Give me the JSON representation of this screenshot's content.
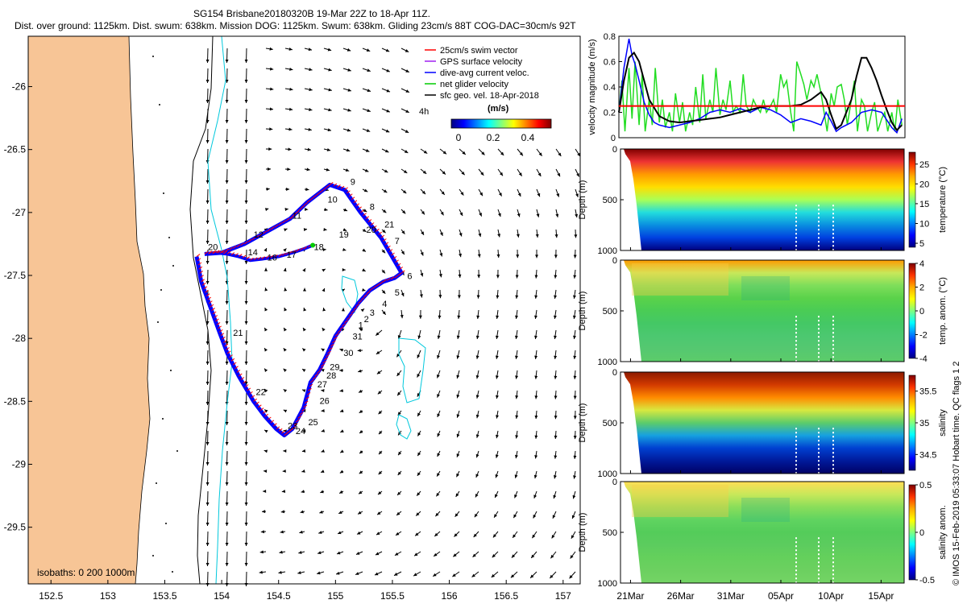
{
  "header": {
    "title_line1": "SG154 Brisbane20180320B 19-Mar 22Z to 18-Apr 11Z.",
    "title_line2": "Dist. over ground: 1125km. Dist. swum: 638km. Mission DOG: 1125km. Swum: 638km. Gliding 23cm/s 88T COG-DAC=30cm/s 92T"
  },
  "footer_credit": "© IMOS 15-Feb-2019 05:33:07 Hobart time. QC flags 1 2",
  "colors": {
    "land": "#f7c596",
    "swim_vector": "#ff0000",
    "gps_velocity": "#a020f0",
    "dive_avg": "#0000ff",
    "net_glider": "#00cc00",
    "sfc_geo": "#000000",
    "isobath_0": "#000000",
    "isobath_200": "#00c8dc",
    "isobath_1000": "#000000",
    "velocity_threshold": "#ff0000"
  },
  "chart_data": [
    {
      "type": "scatter",
      "name": "map",
      "xlim": [
        152.3,
        157.15
      ],
      "ylim": [
        -29.95,
        -25.6
      ],
      "xticks": [
        "152.5",
        "153",
        "153.5",
        "154",
        "154.5",
        "155",
        "155.5",
        "156",
        "156.5",
        "157"
      ],
      "xtick_values": [
        152.5,
        153,
        153.5,
        154,
        154.5,
        155,
        155.5,
        156,
        156.5,
        157
      ],
      "yticks": [
        "-26",
        "-26.5",
        "-27",
        "-27.5",
        "-28",
        "-28.5",
        "-29",
        "-29.5"
      ],
      "ytick_values": [
        -26,
        -26.5,
        -27,
        -27.5,
        -28,
        -28.5,
        -29,
        -29.5
      ],
      "legend": [
        {
          "label": "25cm/s swim vector",
          "color": "#ff0000",
          "mark": "line"
        },
        {
          "label": "GPS surface velocity",
          "color": "#a020f0",
          "mark": "line"
        },
        {
          "label": "dive-avg current veloc.",
          "color": "#0000ff",
          "mark": "line"
        },
        {
          "label": "net glider velocity",
          "color": "#00cc00",
          "mark": "line"
        },
        {
          "label": "sfc geo. vel. 18-Apr-2018",
          "color": "#000000",
          "mark": "line"
        }
      ],
      "legend_position": "top-right",
      "speed_scale_label": "4h",
      "colorbar_title": "(m/s)",
      "colorbar_ticks": [
        "0",
        "0.2",
        "0.4"
      ],
      "isobaths_label": "isobaths: 0   200  1000m",
      "track": {
        "lon": [
          153.78,
          153.82,
          153.9,
          153.98,
          154.05,
          154.15,
          154.28,
          154.38,
          154.48,
          154.55,
          154.62,
          154.72,
          154.78,
          154.86,
          154.93,
          155.0,
          155.1,
          155.2,
          155.3,
          155.42,
          155.52,
          155.58,
          155.4,
          155.22,
          155.08,
          154.95,
          154.75,
          154.6,
          154.4,
          154.2,
          154.0,
          153.85
        ],
        "lat": [
          -27.35,
          -27.55,
          -27.75,
          -27.95,
          -28.12,
          -28.3,
          -28.5,
          -28.62,
          -28.72,
          -28.77,
          -28.72,
          -28.55,
          -28.35,
          -28.25,
          -28.12,
          -27.98,
          -27.85,
          -27.72,
          -27.62,
          -27.55,
          -27.52,
          -27.48,
          -27.2,
          -27.0,
          -26.82,
          -26.78,
          -26.92,
          -27.05,
          -27.15,
          -27.25,
          -27.32,
          -27.33
        ]
      },
      "track_tail": {
        "lon": [
          153.85,
          153.95,
          154.05,
          154.15,
          154.25,
          154.35,
          154.5,
          154.62,
          154.72,
          154.8
        ],
        "lat": [
          -27.33,
          -27.32,
          -27.33,
          -27.35,
          -27.38,
          -27.37,
          -27.35,
          -27.32,
          -27.29,
          -27.26
        ]
      },
      "track_labels": [
        {
          "text": "9",
          "lon": 155.13,
          "lat": -26.78
        },
        {
          "text": "10",
          "lon": 154.93,
          "lat": -26.92
        },
        {
          "text": "11",
          "lon": 154.62,
          "lat": -27.05
        },
        {
          "text": "12",
          "lon": 154.28,
          "lat": -27.2
        },
        {
          "text": "20",
          "lon": 153.88,
          "lat": -27.3
        },
        {
          "text": "14",
          "lon": 154.23,
          "lat": -27.34
        },
        {
          "text": "16",
          "lon": 154.4,
          "lat": -27.38
        },
        {
          "text": "17",
          "lon": 154.57,
          "lat": -27.36
        },
        {
          "text": "18",
          "lon": 154.81,
          "lat": -27.3
        },
        {
          "text": "19",
          "lon": 155.03,
          "lat": -27.2
        },
        {
          "text": "20",
          "lon": 155.27,
          "lat": -27.16
        },
        {
          "text": "21",
          "lon": 155.43,
          "lat": -27.12
        },
        {
          "text": "8",
          "lon": 155.3,
          "lat": -26.98
        },
        {
          "text": "7",
          "lon": 155.52,
          "lat": -27.25
        },
        {
          "text": "6",
          "lon": 155.63,
          "lat": -27.53
        },
        {
          "text": "5",
          "lon": 155.52,
          "lat": -27.66
        },
        {
          "text": "4",
          "lon": 155.41,
          "lat": -27.75
        },
        {
          "text": "3",
          "lon": 155.3,
          "lat": -27.82
        },
        {
          "text": "2",
          "lon": 155.25,
          "lat": -27.87
        },
        {
          "text": "1",
          "lon": 155.2,
          "lat": -27.92
        },
        {
          "text": "31",
          "lon": 155.15,
          "lat": -28.01
        },
        {
          "text": "30",
          "lon": 155.07,
          "lat": -28.14
        },
        {
          "text": "29",
          "lon": 154.95,
          "lat": -28.25
        },
        {
          "text": "28",
          "lon": 154.92,
          "lat": -28.32
        },
        {
          "text": "27",
          "lon": 154.84,
          "lat": -28.39
        },
        {
          "text": "26",
          "lon": 154.86,
          "lat": -28.52
        },
        {
          "text": "25",
          "lon": 154.76,
          "lat": -28.69
        },
        {
          "text": "24",
          "lon": 154.65,
          "lat": -28.76
        },
        {
          "text": "23",
          "lon": 154.58,
          "lat": -28.72
        },
        {
          "text": "22",
          "lon": 154.3,
          "lat": -28.45
        },
        {
          "text": "21",
          "lon": 154.1,
          "lat": -27.98
        }
      ]
    },
    {
      "type": "line",
      "name": "velocity",
      "ylabel": "velocity magnitude (m/s)",
      "xlim": [
        20,
        48.3
      ],
      "ylim": [
        0,
        0.8
      ],
      "yticks": [
        "0",
        "0.2",
        "0.4",
        "0.6",
        "0.8"
      ],
      "ytick_values": [
        0,
        0.2,
        0.4,
        0.6,
        0.8
      ],
      "threshold": 0.25,
      "series": [
        {
          "color": "#000000",
          "x": [
            20,
            20.5,
            21,
            21.5,
            22,
            22.5,
            23,
            24,
            25,
            26,
            27,
            28,
            29,
            30,
            31,
            32,
            33,
            34,
            35,
            36,
            37,
            38,
            39,
            40,
            40.5,
            41,
            41.5,
            42,
            42.5,
            43,
            43.5,
            44,
            44.5,
            45,
            45.5,
            46,
            46.5,
            47,
            47.5,
            48
          ],
          "y": [
            0.2,
            0.45,
            0.63,
            0.67,
            0.6,
            0.45,
            0.3,
            0.17,
            0.13,
            0.12,
            0.13,
            0.14,
            0.15,
            0.16,
            0.18,
            0.2,
            0.22,
            0.24,
            0.25,
            0.25,
            0.25,
            0.26,
            0.3,
            0.36,
            0.3,
            0.18,
            0.07,
            0.1,
            0.2,
            0.3,
            0.48,
            0.63,
            0.63,
            0.55,
            0.45,
            0.33,
            0.22,
            0.12,
            0.06,
            0.1
          ]
        },
        {
          "color": "#0000ff",
          "x": [
            20,
            20.5,
            21,
            21.3,
            21.6,
            22,
            22.5,
            23,
            23.5,
            24,
            25,
            26,
            27,
            28,
            29,
            30,
            31,
            32,
            33,
            34,
            35,
            36,
            37,
            38,
            39,
            40,
            40.5,
            41,
            41.5,
            42,
            43,
            44,
            45,
            46,
            47,
            47.5,
            48
          ],
          "y": [
            0.2,
            0.55,
            0.78,
            0.65,
            0.58,
            0.45,
            0.28,
            0.18,
            0.12,
            0.1,
            0.08,
            0.1,
            0.12,
            0.15,
            0.2,
            0.22,
            0.2,
            0.23,
            0.2,
            0.24,
            0.22,
            0.18,
            0.12,
            0.15,
            0.13,
            0.1,
            0.2,
            0.13,
            0.05,
            0.08,
            0.12,
            0.2,
            0.22,
            0.2,
            0.08,
            0.04,
            0.15
          ]
        },
        {
          "color": "#22dd22",
          "x": [
            20,
            20.3,
            20.6,
            21,
            21.3,
            21.6,
            22,
            22.3,
            22.6,
            23,
            23.3,
            23.6,
            24,
            24.3,
            24.6,
            25,
            25.3,
            25.6,
            26,
            26.3,
            26.6,
            27,
            27.3,
            27.6,
            28,
            28.3,
            28.6,
            29,
            29.3,
            29.6,
            30,
            30.3,
            30.6,
            31,
            31.3,
            31.6,
            32,
            32.3,
            32.6,
            33,
            33.3,
            33.6,
            34,
            34.3,
            34.6,
            35,
            35.3,
            35.6,
            36,
            36.3,
            36.6,
            37,
            37.3,
            37.6,
            38,
            38.3,
            38.6,
            39,
            39.3,
            39.6,
            40,
            40.3,
            40.6,
            41,
            41.3,
            41.6,
            42,
            42.3,
            42.6,
            43,
            43.3,
            43.6,
            44,
            44.3,
            44.6,
            45,
            45.3,
            45.6,
            46,
            46.3,
            46.6,
            47,
            47.3,
            47.6,
            48
          ],
          "y": [
            0.2,
            0.45,
            0.05,
            0.55,
            0.15,
            0.6,
            0.1,
            0.5,
            0.05,
            0.3,
            0.1,
            0.55,
            0.12,
            0.3,
            0.08,
            0.2,
            0.05,
            0.35,
            0.12,
            0.28,
            0.05,
            0.2,
            0.1,
            0.4,
            0.12,
            0.5,
            0.15,
            0.3,
            0.2,
            0.55,
            0.18,
            0.3,
            0.22,
            0.45,
            0.2,
            0.25,
            0.2,
            0.5,
            0.25,
            0.2,
            0.3,
            0.25,
            0.2,
            0.3,
            0.2,
            0.25,
            0.3,
            0.2,
            0.5,
            0.4,
            0.45,
            0.2,
            0.05,
            0.6,
            0.5,
            0.42,
            0.3,
            0.45,
            0.4,
            0.5,
            0.35,
            0.2,
            0.05,
            0.35,
            0.25,
            0.4,
            0.42,
            0.3,
            0.1,
            0.3,
            0.45,
            0.05,
            0.3,
            0.25,
            0.05,
            0.2,
            0.28,
            0.05,
            0.15,
            0.2,
            0.05,
            0.2,
            0.05,
            0.3,
            0.1
          ]
        }
      ]
    },
    {
      "type": "heatmap",
      "name": "temperature",
      "ylabel": "Depth (m)",
      "cbar_label": "temperature (°C)",
      "ylim": [
        1000,
        0
      ],
      "yticks": [
        "0",
        "500",
        "1000"
      ],
      "cbar_range": [
        4,
        28
      ],
      "cbar_ticks": [
        "5",
        "10",
        "15",
        "20",
        "25"
      ],
      "cbar_tick_values": [
        5,
        10,
        15,
        20,
        25
      ]
    },
    {
      "type": "heatmap",
      "name": "temp_anomaly",
      "ylabel": "Depth (m)",
      "cbar_label": "temp. anom. (°C)",
      "ylim": [
        1000,
        0
      ],
      "yticks": [
        "0",
        "500",
        "1000"
      ],
      "cbar_range": [
        -4,
        4
      ],
      "cbar_ticks": [
        "-4",
        "-2",
        "0",
        "2",
        "4"
      ],
      "cbar_tick_values": [
        -4,
        -2,
        0,
        2,
        4
      ]
    },
    {
      "type": "heatmap",
      "name": "salinity",
      "ylabel": "Depth (m)",
      "cbar_label": "salinity",
      "ylim": [
        1000,
        0
      ],
      "yticks": [
        "0",
        "500",
        "1000"
      ],
      "cbar_range": [
        34.25,
        35.75
      ],
      "cbar_ticks": [
        "34.5",
        "35",
        "35.5"
      ],
      "cbar_tick_values": [
        34.5,
        35,
        35.5
      ]
    },
    {
      "type": "heatmap",
      "name": "salinity_anomaly",
      "ylabel": "Depth (m)",
      "cbar_label": "salinity anom.",
      "ylim": [
        1000,
        0
      ],
      "yticks": [
        "0",
        "500",
        "1000"
      ],
      "cbar_range": [
        -0.5,
        0.5
      ],
      "cbar_ticks": [
        "-0.5",
        "0",
        "0.5"
      ],
      "cbar_tick_values": [
        -0.5,
        0,
        0.5
      ],
      "xticks": [
        "21Mar",
        "26Mar",
        "31Mar",
        "05Apr",
        "10Apr",
        "15Apr"
      ],
      "xtick_values": [
        21,
        26,
        31,
        36,
        41,
        46
      ]
    }
  ]
}
